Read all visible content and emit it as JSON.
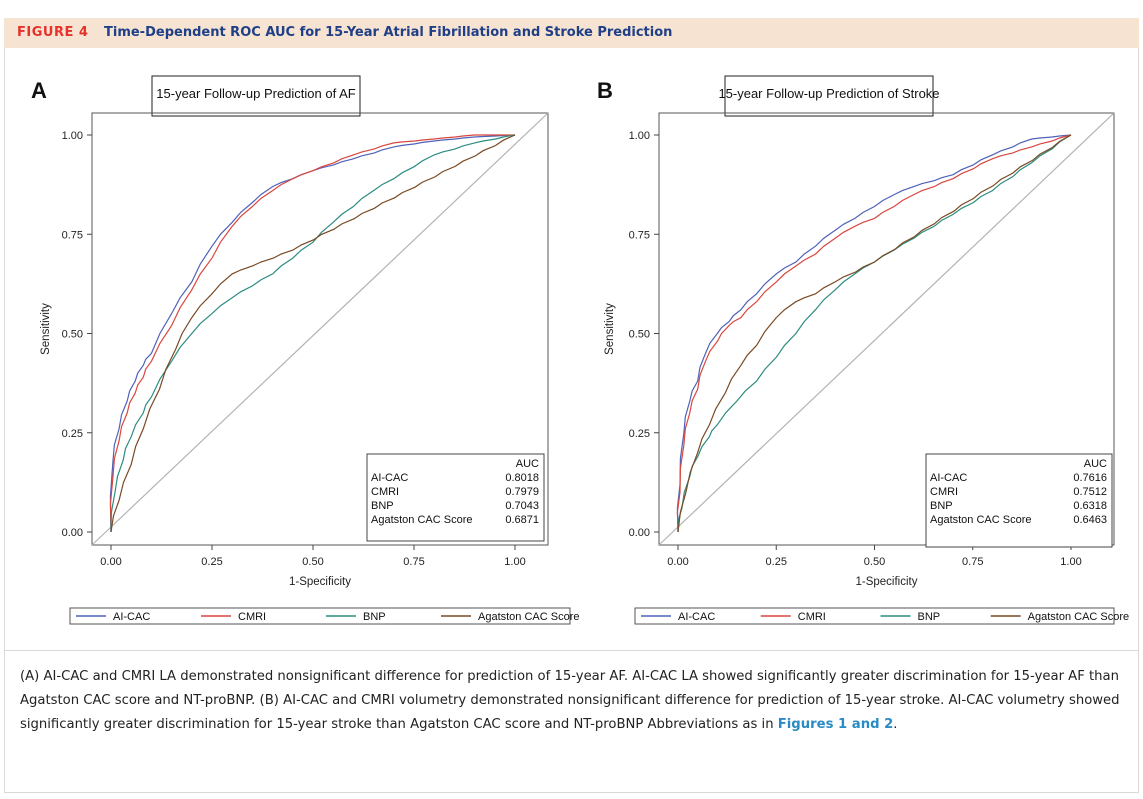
{
  "figure": {
    "label": "FIGURE 4",
    "title": "Time-Dependent ROC AUC for 15-Year Atrial Fibrillation and Stroke Prediction"
  },
  "caption": {
    "text": "(A) AI-CAC and CMRI LA demonstrated nonsignificant difference for prediction of 15-year AF. AI-CAC LA showed significantly greater discrimination for 15-year AF than Agatston CAC score and NT-proBNP. (B) AI-CAC and CMRI volumetry demonstrated nonsignificant difference for prediction of 15-year stroke. AI-CAC volumetry showed significantly greater discrimination for 15-year stroke than Agatston CAC score and NT-proBNP Abbreviations as in ",
    "link": "Figures 1 and 2",
    "end": "."
  },
  "colors": {
    "AI-CAC": "#4f62b8",
    "CMRI": "#d9473f",
    "BNP": "#2c8c80",
    "Agatston CAC Score": "#7a4a23",
    "reference": "#b3b3b3",
    "chord": "#333333"
  },
  "chart_data": [
    {
      "type": "line",
      "panel_letter": "A",
      "title": "15-year Follow-up Prediction of AF",
      "xlabel": "1-Specificity",
      "ylabel": "Sensitivity",
      "xlim": [
        0,
        1
      ],
      "ylim": [
        0,
        1
      ],
      "xticks": [
        "0.00",
        "0.25",
        "0.50",
        "0.75",
        "1.00"
      ],
      "yticks": [
        "0.00",
        "0.25",
        "0.50",
        "0.75",
        "1.00"
      ],
      "reference_line": true,
      "legend_position": "bottom",
      "auc_header": "AUC",
      "auc_table": [
        {
          "name": "AI-CAC",
          "auc": "0.8018"
        },
        {
          "name": "CMRI",
          "auc": "0.7979"
        },
        {
          "name": "BNP",
          "auc": "0.7043"
        },
        {
          "name": "Agatston CAC Score",
          "auc": "0.6871"
        }
      ],
      "series": [
        {
          "name": "AI-CAC",
          "x": [
            0,
            0.005,
            0.02,
            0.04,
            0.06,
            0.08,
            0.1,
            0.15,
            0.2,
            0.25,
            0.3,
            0.35,
            0.4,
            0.45,
            0.5,
            0.6,
            0.7,
            0.8,
            0.9,
            1.0
          ],
          "y": [
            0,
            0.18,
            0.26,
            0.33,
            0.38,
            0.42,
            0.45,
            0.55,
            0.63,
            0.72,
            0.78,
            0.83,
            0.87,
            0.89,
            0.91,
            0.94,
            0.97,
            0.985,
            0.995,
            1.0
          ]
        },
        {
          "name": "CMRI",
          "x": [
            0,
            0.005,
            0.02,
            0.04,
            0.06,
            0.08,
            0.1,
            0.15,
            0.2,
            0.25,
            0.3,
            0.35,
            0.4,
            0.45,
            0.5,
            0.6,
            0.7,
            0.8,
            0.9,
            1.0
          ],
          "y": [
            0,
            0.14,
            0.23,
            0.3,
            0.35,
            0.39,
            0.43,
            0.52,
            0.61,
            0.69,
            0.77,
            0.82,
            0.86,
            0.89,
            0.91,
            0.95,
            0.98,
            0.99,
            1.0,
            1.0
          ]
        },
        {
          "name": "BNP",
          "x": [
            0,
            0.01,
            0.03,
            0.05,
            0.08,
            0.1,
            0.15,
            0.2,
            0.25,
            0.3,
            0.35,
            0.4,
            0.45,
            0.5,
            0.55,
            0.6,
            0.65,
            0.7,
            0.75,
            0.8,
            0.9,
            1.0
          ],
          "y": [
            0,
            0.1,
            0.18,
            0.24,
            0.3,
            0.34,
            0.43,
            0.5,
            0.55,
            0.59,
            0.62,
            0.65,
            0.69,
            0.73,
            0.78,
            0.82,
            0.86,
            0.89,
            0.92,
            0.95,
            0.98,
            1.0
          ]
        },
        {
          "name": "Agatston CAC Score",
          "x": [
            0,
            0.02,
            0.05,
            0.08,
            0.12,
            0.16,
            0.2,
            0.25,
            0.3,
            0.35,
            0.45,
            1.0
          ],
          "y": [
            0,
            0.08,
            0.17,
            0.26,
            0.36,
            0.46,
            0.54,
            0.6,
            0.65,
            0.67,
            0.71,
            1.0
          ]
        }
      ]
    },
    {
      "type": "line",
      "panel_letter": "B",
      "title": "15-year Follow-up Prediction of Stroke",
      "xlabel": "1-Specificity",
      "ylabel": "Sensitivity",
      "xlim": [
        0,
        1
      ],
      "ylim": [
        0,
        1
      ],
      "xticks": [
        "0.00",
        "0.25",
        "0.50",
        "0.75",
        "1.00"
      ],
      "yticks": [
        "0.00",
        "0.25",
        "0.50",
        "0.75",
        "1.00"
      ],
      "reference_line": true,
      "legend_position": "bottom",
      "auc_header": "AUC",
      "auc_table": [
        {
          "name": "AI-CAC",
          "auc": "0.7616"
        },
        {
          "name": "CMRI",
          "auc": "0.7512"
        },
        {
          "name": "BNP",
          "auc": "0.6318"
        },
        {
          "name": "Agatston CAC Score",
          "auc": "0.6463"
        }
      ],
      "series": [
        {
          "name": "AI-CAC",
          "x": [
            0,
            0.005,
            0.015,
            0.03,
            0.05,
            0.07,
            0.1,
            0.13,
            0.16,
            0.2,
            0.25,
            0.3,
            0.35,
            0.4,
            0.45,
            0.5,
            0.55,
            0.6,
            0.7,
            0.8,
            0.9,
            1.0
          ],
          "y": [
            0,
            0.12,
            0.25,
            0.33,
            0.38,
            0.45,
            0.5,
            0.53,
            0.56,
            0.6,
            0.65,
            0.68,
            0.72,
            0.76,
            0.79,
            0.82,
            0.85,
            0.87,
            0.9,
            0.95,
            0.99,
            1.0
          ]
        },
        {
          "name": "CMRI",
          "x": [
            0,
            0.005,
            0.015,
            0.03,
            0.05,
            0.07,
            0.1,
            0.13,
            0.16,
            0.2,
            0.25,
            0.3,
            0.35,
            0.4,
            0.45,
            0.5,
            0.55,
            0.6,
            0.7,
            0.8,
            0.9,
            1.0
          ],
          "y": [
            0,
            0.1,
            0.22,
            0.3,
            0.36,
            0.43,
            0.48,
            0.52,
            0.54,
            0.58,
            0.63,
            0.67,
            0.7,
            0.74,
            0.77,
            0.79,
            0.82,
            0.85,
            0.89,
            0.94,
            0.97,
            1.0
          ]
        },
        {
          "name": "BNP",
          "x": [
            0,
            0.01,
            0.03,
            0.05,
            0.08,
            0.1,
            0.15,
            0.2,
            0.25,
            0.3,
            0.35,
            0.4,
            0.45,
            0.5,
            0.55,
            0.6,
            0.7,
            0.8,
            0.9,
            1.0
          ],
          "y": [
            0,
            0.06,
            0.14,
            0.19,
            0.24,
            0.27,
            0.33,
            0.38,
            0.44,
            0.5,
            0.56,
            0.61,
            0.65,
            0.68,
            0.71,
            0.74,
            0.8,
            0.86,
            0.93,
            1.0
          ]
        },
        {
          "name": "Agatston CAC Score",
          "x": [
            0,
            0.02,
            0.05,
            0.08,
            0.12,
            0.16,
            0.2,
            0.25,
            0.3,
            0.35,
            0.4,
            0.5,
            1.0
          ],
          "y": [
            0,
            0.1,
            0.2,
            0.27,
            0.35,
            0.42,
            0.47,
            0.54,
            0.58,
            0.6,
            0.63,
            0.68,
            1.0
          ]
        }
      ]
    }
  ]
}
